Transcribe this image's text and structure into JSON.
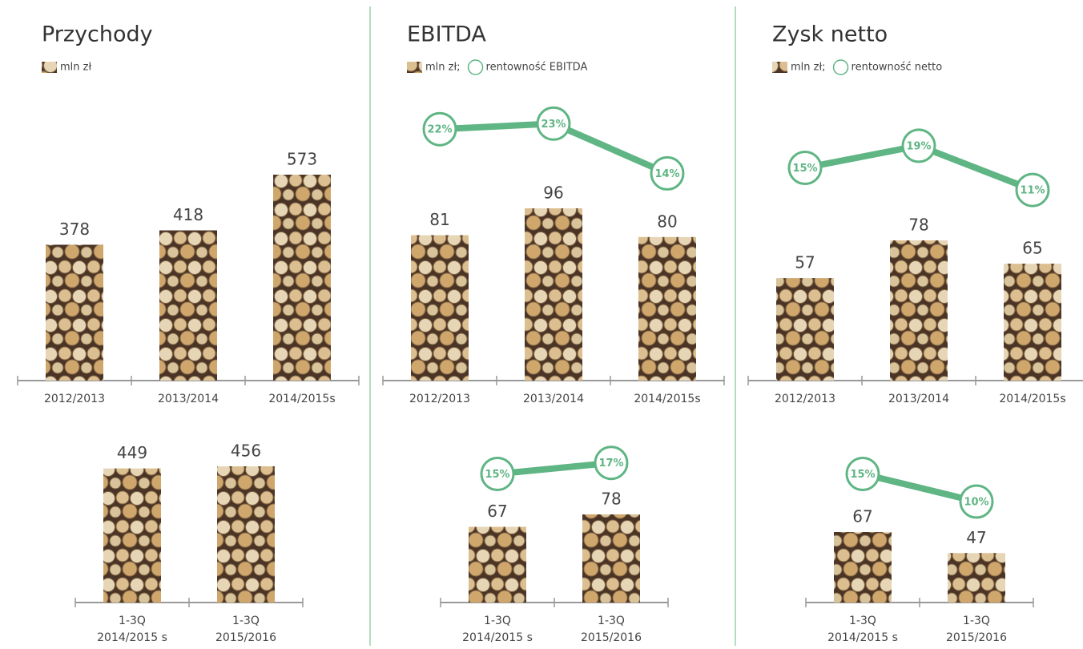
{
  "chart_data": [
    {
      "type": "bar",
      "title": "Przychody",
      "categories": [
        "2012/2013",
        "2013/2014",
        "2014/2015s"
      ],
      "series": [
        {
          "name": "mln zł",
          "values": [
            378,
            418,
            573
          ]
        }
      ]
    },
    {
      "type": "bar",
      "categories": [
        [
          "1-3Q",
          "2014/2015 s"
        ],
        [
          "1-3Q",
          "2015/2016"
        ]
      ],
      "series": [
        {
          "values": [
            449,
            456
          ]
        }
      ]
    },
    {
      "type": "bar-line",
      "title": "EBITDA",
      "categories": [
        "2012/2013",
        "2013/2014",
        "2014/2015s"
      ],
      "series": [
        {
          "name": "mln zł;",
          "values": [
            81,
            96,
            80
          ]
        },
        {
          "name": "rentowność EBITDA",
          "type": "line",
          "color": "#5fb583",
          "values": [
            22,
            23,
            14
          ],
          "value_labels": [
            "22%",
            "23%",
            "14%"
          ]
        }
      ]
    },
    {
      "type": "bar-line",
      "categories": [
        [
          "1-3Q",
          "2014/2015 s"
        ],
        [
          "1-3Q",
          "2015/2016"
        ]
      ],
      "series": [
        {
          "values": [
            67,
            78
          ]
        },
        {
          "type": "line",
          "color": "#5fb583",
          "values": [
            15,
            17
          ],
          "value_labels": [
            "15%",
            "17%"
          ]
        }
      ]
    },
    {
      "type": "bar-line",
      "title": "Zysk netto",
      "categories": [
        "2012/2013",
        "2013/2014",
        "2014/2015s"
      ],
      "series": [
        {
          "name": "mln zł;",
          "values": [
            57,
            78,
            65
          ]
        },
        {
          "name": "rentowność netto",
          "type": "line",
          "color": "#5fb583",
          "values": [
            15,
            19,
            11
          ],
          "value_labels": [
            "15%",
            "19%",
            "11%"
          ]
        }
      ]
    },
    {
      "type": "bar-line",
      "categories": [
        [
          "1-3Q",
          "2014/2015 s"
        ],
        [
          "1-3Q",
          "2015/2016"
        ]
      ],
      "series": [
        {
          "values": [
            67,
            47
          ]
        },
        {
          "type": "line",
          "color": "#5fb583",
          "values": [
            15,
            10
          ],
          "value_labels": [
            "15%",
            "10%"
          ]
        }
      ]
    }
  ]
}
